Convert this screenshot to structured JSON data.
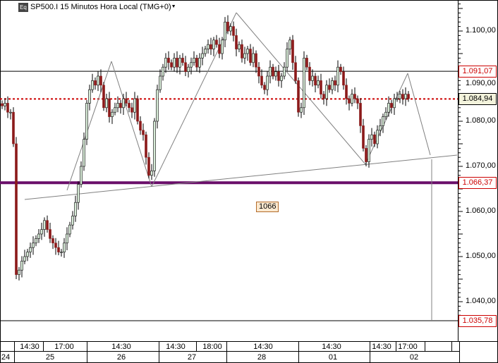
{
  "header": {
    "symbol_icon": "Eq",
    "title": "SP500.I 15 Minutos Hora Local (TMG+0)",
    "dropdown_icon": "triangle-down-icon"
  },
  "chart_data": {
    "type": "candlestick",
    "title": "SP500.I 15 Minutos Hora Local (TMG+0)",
    "ylim": [
      1034,
      1107
    ],
    "y_ticks": [
      "1.100,00",
      "1.090,00",
      "1.080,00",
      "1.070,00",
      "1.060,00",
      "1.050,00",
      "1.040,00"
    ],
    "y_tick_values": [
      1100,
      1090,
      1080,
      1070,
      1060,
      1050,
      1040
    ],
    "close": [
      1083.4,
      1084,
      1082,
      1082,
      1075,
      1046,
      1047,
      1049,
      1050,
      1051,
      1052,
      1053,
      1054,
      1055,
      1056,
      1058,
      1056,
      1054,
      1053,
      1052,
      1051,
      1051,
      1053,
      1055,
      1057,
      1059,
      1062,
      1066,
      1070,
      1076,
      1084,
      1087,
      1089,
      1088,
      1090,
      1088,
      1083,
      1085,
      1081,
      1082,
      1083,
      1084,
      1083,
      1085,
      1084,
      1083,
      1082,
      1085,
      1080,
      1078,
      1077,
      1072,
      1068,
      1069,
      1080,
      1087,
      1090,
      1092,
      1094,
      1093,
      1092,
      1094,
      1092,
      1094,
      1093,
      1091,
      1092,
      1093,
      1094,
      1092,
      1094,
      1095,
      1096,
      1097,
      1096,
      1098,
      1097,
      1095,
      1098,
      1102,
      1100,
      1101,
      1099,
      1096,
      1097,
      1094,
      1095,
      1096,
      1093,
      1095,
      1092,
      1090,
      1088,
      1087,
      1090,
      1092,
      1090,
      1091,
      1089,
      1090,
      1092,
      1096,
      1098,
      1093,
      1089,
      1082,
      1083,
      1094,
      1092,
      1089,
      1090,
      1088,
      1089,
      1086,
      1085,
      1088,
      1087,
      1089,
      1088,
      1092,
      1091,
      1088,
      1085,
      1084,
      1086,
      1085,
      1084,
      1079,
      1074,
      1071,
      1076,
      1077,
      1075,
      1078,
      1079,
      1081,
      1082,
      1084,
      1083,
      1085,
      1085,
      1086,
      1085,
      1086,
      1085
    ],
    "price_lines": [
      {
        "label": "1.091,07",
        "value": 1091.07,
        "style": "solid",
        "color": "#000000",
        "label_color": "#cc0000"
      },
      {
        "label": "1.084,94",
        "value": 1084.94,
        "style": "dotted",
        "color": "#cc0000",
        "label_color": "#000000"
      },
      {
        "label": "1.066,37",
        "value": 1066.37,
        "style": "thick",
        "color": "#6a0f6a",
        "label_color": "#cc0000"
      },
      {
        "label": "1.035,78",
        "value": 1035.78,
        "style": "solid",
        "color": "#000000",
        "label_color": "#cc0000"
      }
    ],
    "annotation": "1066",
    "time_labels": [
      "14:30",
      "17:00",
      "14:30",
      "14:30",
      "18:00",
      "14:30",
      "14:30",
      "14:30",
      "17:00"
    ],
    "day_labels": [
      "24",
      "25",
      "26",
      "27",
      "28",
      "01",
      "02"
    ],
    "colors": {
      "up": "#d8ecd8",
      "down": "#8b1a1a",
      "wick": "#000000",
      "drawing": "#808080"
    }
  }
}
